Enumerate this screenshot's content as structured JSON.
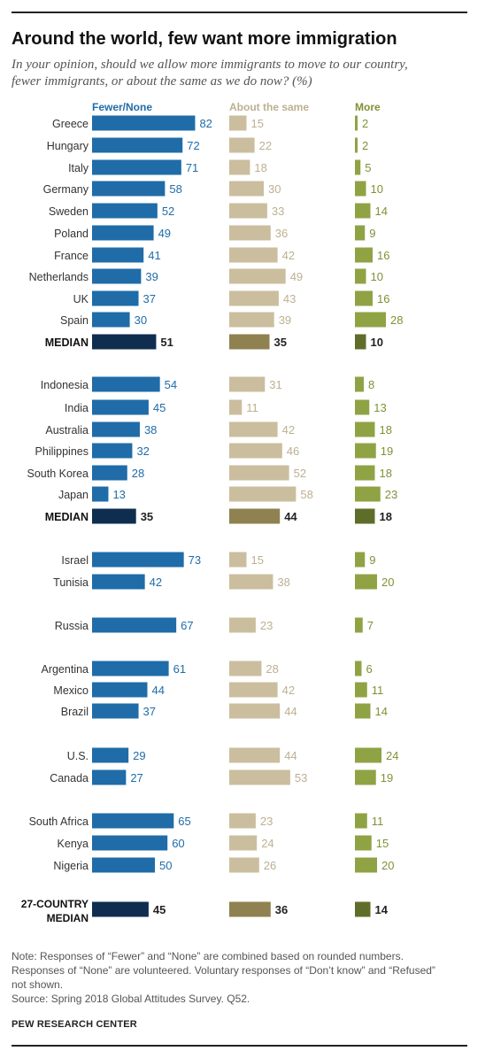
{
  "header": {
    "title": "Around the world, few want more immigration",
    "subtitle_line1": "In your opinion, should we allow more immigrants to move to our country,",
    "subtitle_line2": "fewer immigrants, or about the same as we do now? (%)"
  },
  "footer": {
    "note_line1": "Note: Responses of “Fewer” and “None” are combined based on rounded numbers.",
    "note_line2": "Responses of “None” are volunteered. Voluntary responses of “Don’t know” and “Refused”",
    "note_line3": "not shown.",
    "source": "Source: Spring 2018 Global Attitudes Survey. Q52.",
    "org": "PEW RESEARCH CENTER"
  },
  "colors": {
    "fewer": "#1f6ca8",
    "fewer_median": "#0f2d4f",
    "same": "#cbbe9e",
    "same_median": "#8f8150",
    "more": "#8fa344",
    "more_median": "#5f6d2a",
    "fewer_text": "#1f6ca8",
    "same_text": "#bdb091",
    "more_text": "#7f9235"
  },
  "chart_data": {
    "type": "bar",
    "series": [
      {
        "name": "Fewer/None"
      },
      {
        "name": "About the same"
      },
      {
        "name": "More"
      }
    ],
    "rows": [
      {
        "label": "Greece",
        "fewer": 82,
        "same": 15,
        "more": 2
      },
      {
        "label": "Hungary",
        "fewer": 72,
        "same": 22,
        "more": 2
      },
      {
        "label": "Italy",
        "fewer": 71,
        "same": 18,
        "more": 5
      },
      {
        "label": "Germany",
        "fewer": 58,
        "same": 30,
        "more": 10
      },
      {
        "label": "Sweden",
        "fewer": 52,
        "same": 33,
        "more": 14
      },
      {
        "label": "Poland",
        "fewer": 49,
        "same": 36,
        "more": 9
      },
      {
        "label": "France",
        "fewer": 41,
        "same": 42,
        "more": 16
      },
      {
        "label": "Netherlands",
        "fewer": 39,
        "same": 49,
        "more": 10
      },
      {
        "label": "UK",
        "fewer": 37,
        "same": 43,
        "more": 16
      },
      {
        "label": "Spain",
        "fewer": 30,
        "same": 39,
        "more": 28
      },
      {
        "label": "MEDIAN",
        "fewer": 51,
        "same": 35,
        "more": 10,
        "median": true
      },
      {
        "label": "Indonesia",
        "fewer": 54,
        "same": 31,
        "more": 8
      },
      {
        "label": "India",
        "fewer": 45,
        "same": 11,
        "more": 13
      },
      {
        "label": "Australia",
        "fewer": 38,
        "same": 42,
        "more": 18
      },
      {
        "label": "Philippines",
        "fewer": 32,
        "same": 46,
        "more": 19
      },
      {
        "label": "South Korea",
        "fewer": 28,
        "same": 52,
        "more": 18
      },
      {
        "label": "Japan",
        "fewer": 13,
        "same": 58,
        "more": 23
      },
      {
        "label": "MEDIAN",
        "fewer": 35,
        "same": 44,
        "more": 18,
        "median": true
      },
      {
        "label": "Israel",
        "fewer": 73,
        "same": 15,
        "more": 9
      },
      {
        "label": "Tunisia",
        "fewer": 42,
        "same": 38,
        "more": 20
      },
      {
        "label": "Russia",
        "fewer": 67,
        "same": 23,
        "more": 7
      },
      {
        "label": "Argentina",
        "fewer": 61,
        "same": 28,
        "more": 6
      },
      {
        "label": "Mexico",
        "fewer": 44,
        "same": 42,
        "more": 11
      },
      {
        "label": "Brazil",
        "fewer": 37,
        "same": 44,
        "more": 14
      },
      {
        "label": "U.S.",
        "fewer": 29,
        "same": 44,
        "more": 24
      },
      {
        "label": "Canada",
        "fewer": 27,
        "same": 53,
        "more": 19
      },
      {
        "label": "South Africa",
        "fewer": 65,
        "same": 23,
        "more": 11
      },
      {
        "label": "Kenya",
        "fewer": 60,
        "same": 24,
        "more": 15
      },
      {
        "label": "Nigeria",
        "fewer": 50,
        "same": 26,
        "more": 20
      },
      {
        "label": "27-COUNTRY MEDIAN",
        "label_line1": "27-COUNTRY",
        "label_line2": "MEDIAN",
        "fewer": 45,
        "same": 36,
        "more": 14,
        "median": true
      }
    ]
  }
}
